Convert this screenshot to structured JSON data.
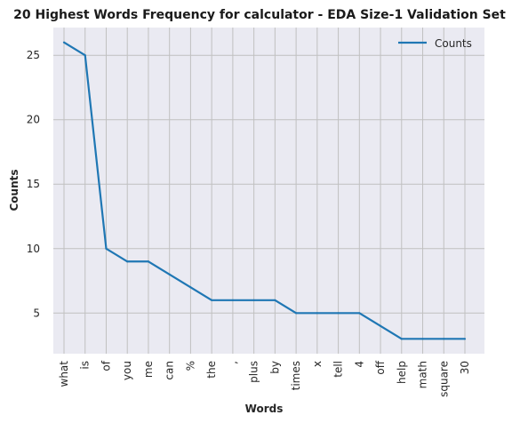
{
  "chart_data": {
    "type": "line",
    "title": "20 Highest Words Frequency for calculator - EDA Size-1 Validation Set",
    "xlabel": "Words",
    "ylabel": "Counts",
    "categories": [
      "what",
      "is",
      "of",
      "you",
      "me",
      "can",
      "%",
      "the",
      ",",
      "plus",
      "by",
      "times",
      "x",
      "tell",
      "4",
      "off",
      "help",
      "math",
      "square",
      "30"
    ],
    "series": [
      {
        "name": "Counts",
        "values": [
          26,
          25,
          10,
          9,
          9,
          8,
          7,
          6,
          6,
          6,
          6,
          5,
          5,
          5,
          5,
          4,
          3,
          3,
          3,
          3
        ]
      }
    ],
    "yticks": [
      5,
      10,
      15,
      20,
      25
    ],
    "ylim": [
      1.85,
      27.15
    ],
    "grid": true,
    "legend": "top-right",
    "colors": {
      "line": "#1f77b4",
      "background": "#eaeaf2",
      "grid": "#c0c0c0"
    }
  }
}
